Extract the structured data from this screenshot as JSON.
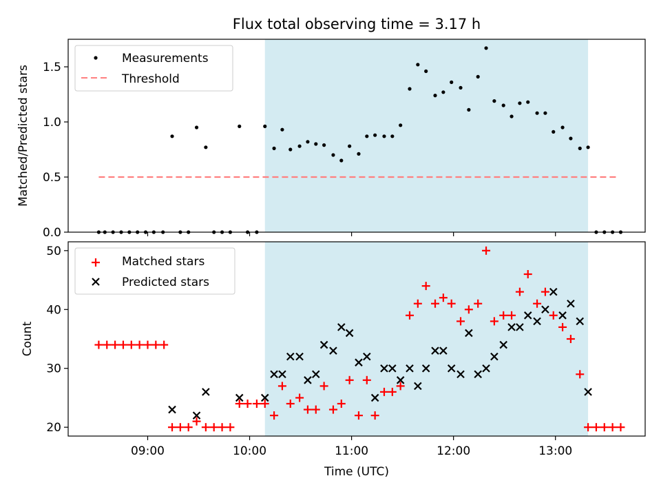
{
  "title": "Flux total observing time = 3.17 h",
  "colors": {
    "shade": "#add8e6",
    "matched": "#ff0000",
    "predicted": "#000000",
    "threshold": "#ff7f7f",
    "points": "#000000"
  },
  "xaxis": {
    "label": "Time (UTC)",
    "range_hours": [
      8.22,
      13.88
    ],
    "ticks": [
      {
        "v": 9,
        "label": "09:00"
      },
      {
        "v": 10,
        "label": "10:00"
      },
      {
        "v": 11,
        "label": "11:00"
      },
      {
        "v": 12,
        "label": "12:00"
      },
      {
        "v": 13,
        "label": "13:00"
      }
    ]
  },
  "shaded_interval_hours": [
    10.15,
    13.32
  ],
  "chart_data": [
    {
      "type": "scatter",
      "ylabel": "Matched/Predicted stars",
      "ylim": [
        0,
        1.75
      ],
      "yticks": [
        {
          "v": 0,
          "label": "0.0"
        },
        {
          "v": 0.5,
          "label": "0.5"
        },
        {
          "v": 1.0,
          "label": "1.0"
        },
        {
          "v": 1.5,
          "label": "1.5"
        }
      ],
      "legend": {
        "position": "top-left",
        "items": [
          "Measurements",
          "Threshold"
        ]
      },
      "threshold": {
        "name": "Threshold",
        "y": 0.5,
        "x": [
          8.52,
          13.62
        ]
      },
      "series": [
        {
          "name": "Measurements",
          "points": [
            [
              8.52,
              0
            ],
            [
              8.58,
              0
            ],
            [
              8.66,
              0
            ],
            [
              8.74,
              0
            ],
            [
              8.82,
              0
            ],
            [
              8.9,
              0
            ],
            [
              8.98,
              0
            ],
            [
              9.06,
              0
            ],
            [
              9.15,
              0
            ],
            [
              9.24,
              0.87
            ],
            [
              9.32,
              0
            ],
            [
              9.4,
              0
            ],
            [
              9.48,
              0.95
            ],
            [
              9.57,
              0.77
            ],
            [
              9.65,
              0
            ],
            [
              9.73,
              0
            ],
            [
              9.81,
              0
            ],
            [
              9.9,
              0.96
            ],
            [
              9.98,
              0
            ],
            [
              10.07,
              0
            ],
            [
              10.15,
              0.96
            ],
            [
              10.24,
              0.76
            ],
            [
              10.32,
              0.93
            ],
            [
              10.4,
              0.75
            ],
            [
              10.49,
              0.78
            ],
            [
              10.57,
              0.82
            ],
            [
              10.65,
              0.8
            ],
            [
              10.73,
              0.79
            ],
            [
              10.82,
              0.7
            ],
            [
              10.9,
              0.65
            ],
            [
              10.98,
              0.78
            ],
            [
              11.07,
              0.71
            ],
            [
              11.15,
              0.87
            ],
            [
              11.23,
              0.88
            ],
            [
              11.32,
              0.87
            ],
            [
              11.4,
              0.87
            ],
            [
              11.48,
              0.97
            ],
            [
              11.57,
              1.3
            ],
            [
              11.65,
              1.52
            ],
            [
              11.73,
              1.46
            ],
            [
              11.82,
              1.24
            ],
            [
              11.9,
              1.27
            ],
            [
              11.98,
              1.36
            ],
            [
              12.07,
              1.31
            ],
            [
              12.15,
              1.11
            ],
            [
              12.24,
              1.41
            ],
            [
              12.32,
              1.67
            ],
            [
              12.4,
              1.19
            ],
            [
              12.49,
              1.15
            ],
            [
              12.57,
              1.05
            ],
            [
              12.65,
              1.17
            ],
            [
              12.73,
              1.18
            ],
            [
              12.82,
              1.08
            ],
            [
              12.9,
              1.08
            ],
            [
              12.98,
              0.91
            ],
            [
              13.07,
              0.95
            ],
            [
              13.15,
              0.85
            ],
            [
              13.24,
              0.76
            ],
            [
              13.32,
              0.77
            ],
            [
              13.4,
              0
            ],
            [
              13.48,
              0
            ],
            [
              13.56,
              0
            ],
            [
              13.64,
              0
            ]
          ]
        }
      ]
    },
    {
      "type": "scatter",
      "ylabel": "Count",
      "ylim": [
        18.5,
        51.5
      ],
      "yticks": [
        {
          "v": 20,
          "label": "20"
        },
        {
          "v": 30,
          "label": "30"
        },
        {
          "v": 40,
          "label": "40"
        },
        {
          "v": 50,
          "label": "50"
        }
      ],
      "legend": {
        "position": "top-left",
        "items": [
          "Matched stars",
          "Predicted stars"
        ]
      },
      "series": [
        {
          "name": "Matched stars",
          "marker": "+",
          "points": [
            [
              8.52,
              34
            ],
            [
              8.6,
              34
            ],
            [
              8.68,
              34
            ],
            [
              8.76,
              34
            ],
            [
              8.84,
              34
            ],
            [
              8.92,
              34
            ],
            [
              9.0,
              34
            ],
            [
              9.08,
              34
            ],
            [
              9.16,
              34
            ],
            [
              9.24,
              20
            ],
            [
              9.32,
              20
            ],
            [
              9.4,
              20
            ],
            [
              9.48,
              21
            ],
            [
              9.57,
              20
            ],
            [
              9.65,
              20
            ],
            [
              9.73,
              20
            ],
            [
              9.81,
              20
            ],
            [
              9.9,
              24
            ],
            [
              9.98,
              24
            ],
            [
              10.07,
              24
            ],
            [
              10.15,
              24
            ],
            [
              10.24,
              22
            ],
            [
              10.32,
              27
            ],
            [
              10.4,
              24
            ],
            [
              10.49,
              25
            ],
            [
              10.57,
              23
            ],
            [
              10.65,
              23
            ],
            [
              10.73,
              27
            ],
            [
              10.82,
              23
            ],
            [
              10.9,
              24
            ],
            [
              10.98,
              28
            ],
            [
              11.07,
              22
            ],
            [
              11.15,
              28
            ],
            [
              11.23,
              22
            ],
            [
              11.32,
              26
            ],
            [
              11.4,
              26
            ],
            [
              11.48,
              27
            ],
            [
              11.57,
              39
            ],
            [
              11.65,
              41
            ],
            [
              11.73,
              44
            ],
            [
              11.82,
              41
            ],
            [
              11.9,
              42
            ],
            [
              11.98,
              41
            ],
            [
              12.07,
              38
            ],
            [
              12.15,
              40
            ],
            [
              12.24,
              41
            ],
            [
              12.32,
              50
            ],
            [
              12.4,
              38
            ],
            [
              12.49,
              39
            ],
            [
              12.57,
              39
            ],
            [
              12.65,
              43
            ],
            [
              12.73,
              46
            ],
            [
              12.82,
              41
            ],
            [
              12.9,
              43
            ],
            [
              12.98,
              39
            ],
            [
              13.07,
              37
            ],
            [
              13.15,
              35
            ],
            [
              13.24,
              29
            ],
            [
              13.32,
              20
            ],
            [
              13.4,
              20
            ],
            [
              13.48,
              20
            ],
            [
              13.56,
              20
            ],
            [
              13.64,
              20
            ]
          ]
        },
        {
          "name": "Predicted stars",
          "marker": "x",
          "points": [
            [
              9.24,
              23
            ],
            [
              9.48,
              22
            ],
            [
              9.57,
              26
            ],
            [
              9.9,
              25
            ],
            [
              10.15,
              25
            ],
            [
              10.24,
              29
            ],
            [
              10.32,
              29
            ],
            [
              10.4,
              32
            ],
            [
              10.49,
              32
            ],
            [
              10.57,
              28
            ],
            [
              10.65,
              29
            ],
            [
              10.73,
              34
            ],
            [
              10.82,
              33
            ],
            [
              10.9,
              37
            ],
            [
              10.98,
              36
            ],
            [
              11.07,
              31
            ],
            [
              11.15,
              32
            ],
            [
              11.23,
              25
            ],
            [
              11.32,
              30
            ],
            [
              11.4,
              30
            ],
            [
              11.48,
              28
            ],
            [
              11.57,
              30
            ],
            [
              11.65,
              27
            ],
            [
              11.73,
              30
            ],
            [
              11.82,
              33
            ],
            [
              11.9,
              33
            ],
            [
              11.98,
              30
            ],
            [
              12.07,
              29
            ],
            [
              12.15,
              36
            ],
            [
              12.24,
              29
            ],
            [
              12.32,
              30
            ],
            [
              12.4,
              32
            ],
            [
              12.49,
              34
            ],
            [
              12.57,
              37
            ],
            [
              12.65,
              37
            ],
            [
              12.73,
              39
            ],
            [
              12.82,
              38
            ],
            [
              12.9,
              40
            ],
            [
              12.98,
              43
            ],
            [
              13.07,
              39
            ],
            [
              13.15,
              41
            ],
            [
              13.24,
              38
            ],
            [
              13.32,
              26
            ]
          ]
        }
      ]
    }
  ]
}
